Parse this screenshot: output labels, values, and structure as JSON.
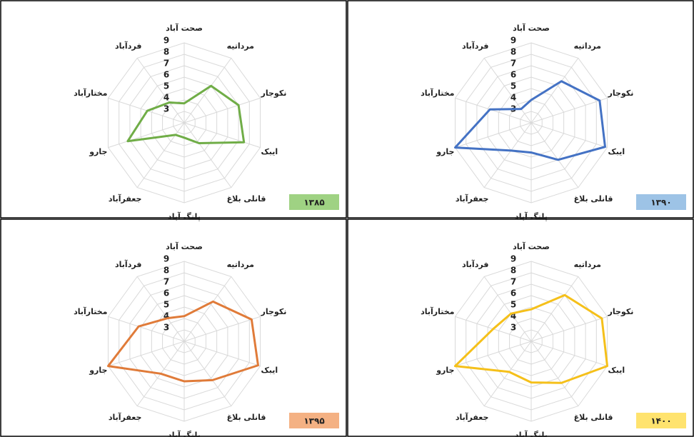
{
  "chart_data": [
    {
      "type": "radar",
      "title": "۱۳۸۵",
      "title_color": "#9fd283",
      "categories": [
        "صحت آباد",
        "مرداتیه",
        "نکوجار",
        "ایبک",
        "قانلی بلاغ",
        "پلنگ آباد",
        "جعفرآباد",
        "جارو",
        "مختارآباد",
        "فردآباد"
      ],
      "series": [
        {
          "color": "#70ad47",
          "values": [
            3.7,
            6.0,
            7.0,
            7.5,
            4.2,
            3.3,
            3.3,
            7.2,
            5.4,
            4.2
          ]
        }
      ],
      "rlim": [
        2,
        9
      ],
      "rticks": [
        3,
        4,
        5,
        6,
        7,
        8,
        9
      ],
      "grid": true
    },
    {
      "type": "radar",
      "title": "۱۳۹۰",
      "title_color": "#9dc3e6",
      "categories": [
        "صحت آباد",
        "مرداتیه",
        "نکوجار",
        "ایبک",
        "قانلی بلاغ",
        "پلنگ آباد",
        "جعفرآباد",
        "جارو",
        "مختارآباد",
        "فردآباد"
      ],
      "series": [
        {
          "color": "#4472c4",
          "values": [
            4.0,
            6.5,
            8.3,
            8.8,
            6.0,
            4.6,
            5.0,
            9.0,
            5.8,
            3.5
          ]
        }
      ],
      "rlim": [
        2,
        9
      ],
      "rticks": [
        3,
        4,
        5,
        6,
        7,
        8,
        9
      ],
      "grid": true
    },
    {
      "type": "radar",
      "title": "۱۳۹۵",
      "title_color": "#f4b183",
      "categories": [
        "صحت آباد",
        "مرداتیه",
        "نکوجار",
        "ایبک",
        "قانلی بلاغ",
        "پلنگ آباد",
        "جعفرآباد",
        "جارو",
        "مختارآباد",
        "فردآباد"
      ],
      "series": [
        {
          "color": "#e07b39",
          "values": [
            4.2,
            6.3,
            8.2,
            8.8,
            6.2,
            5.5,
            5.5,
            9.0,
            6.2,
            4.5
          ]
        }
      ],
      "rlim": [
        2,
        9
      ],
      "rticks": [
        3,
        4,
        5,
        6,
        7,
        8,
        9
      ],
      "grid": true
    },
    {
      "type": "radar",
      "title": "۱۴۰۰",
      "title_color": "#ffe36e",
      "categories": [
        "صحت آباد",
        "مرداتیه",
        "نکوجار",
        "ایبک",
        "قانلی بلاغ",
        "پلنگ آباد",
        "جعفرآباد",
        "جارو",
        "مختارآباد",
        "فردآباد"
      ],
      "series": [
        {
          "color": "#f5c01a",
          "values": [
            4.8,
            7.0,
            8.5,
            9.0,
            6.5,
            5.6,
            5.3,
            9.0,
            5.5,
            5.0
          ]
        }
      ],
      "rlim": [
        2,
        9
      ],
      "rticks": [
        3,
        4,
        5,
        6,
        7,
        8,
        9
      ],
      "grid": true
    }
  ]
}
